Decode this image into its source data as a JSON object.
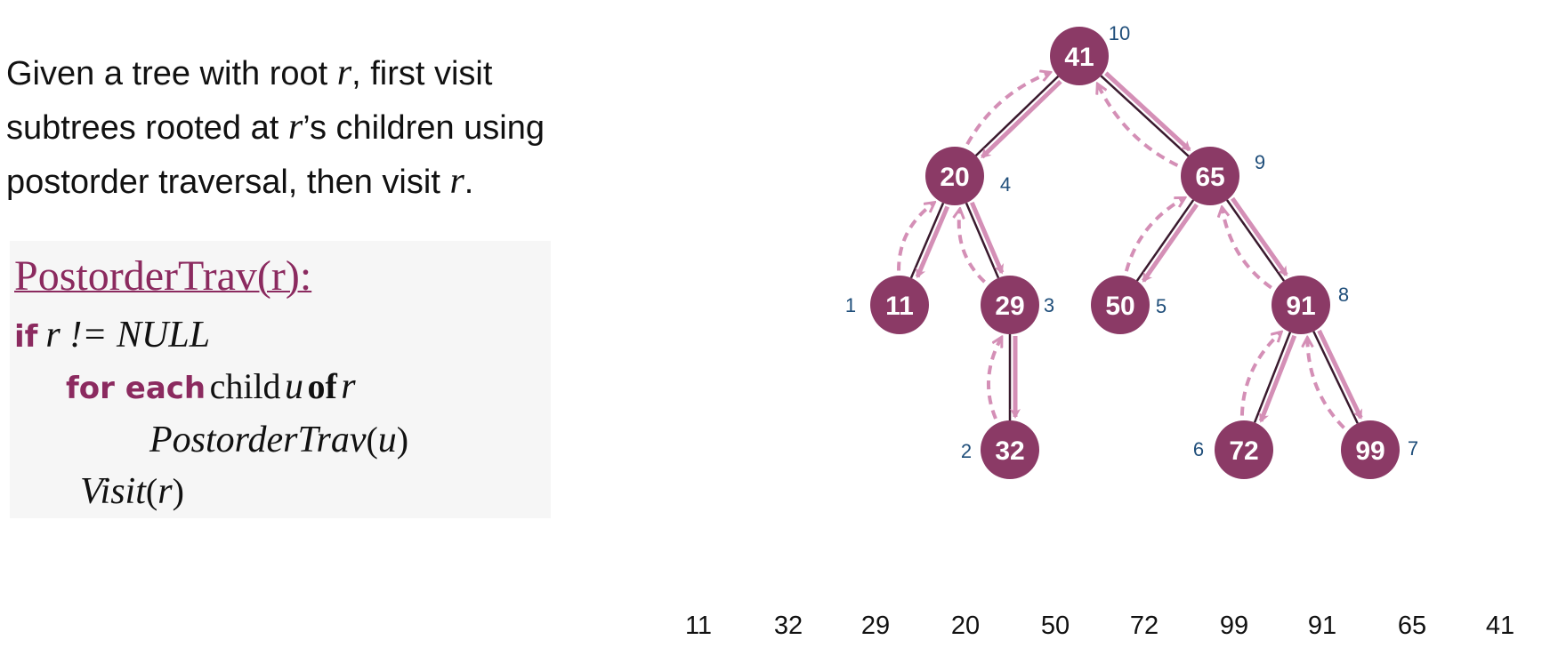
{
  "description": {
    "line1_pre": "Given a tree with root ",
    "line1_var": "r",
    "line1_post": ", first visit",
    "line2_pre": "subtrees rooted at ",
    "line2_var": "r",
    "line2_post": "’s children using",
    "line3_pre": "postorder traversal, then visit ",
    "line3_var": "r",
    "line3_post": "."
  },
  "code": {
    "title": "PostorderTrav(r):",
    "if_kw": "if",
    "if_cond": "r != NULL",
    "for_kw": "for each",
    "for_child": "child",
    "for_var_u": "u",
    "for_of": "of",
    "for_var_r": "r",
    "recursive_call_fn": "PostorderTrav",
    "recursive_call_arg": "u",
    "visit_fn": "Visit",
    "visit_arg": "r"
  },
  "tree": {
    "colors": {
      "node_fill": "#8b3a66",
      "node_text": "#ffffff",
      "edge": "#3a1a2e",
      "arrow": "#d48fb6",
      "order_label": "#1f4e7a"
    },
    "nodes": [
      {
        "id": "n41",
        "value": "41",
        "order": "10"
      },
      {
        "id": "n20",
        "value": "20",
        "order": "4"
      },
      {
        "id": "n65",
        "value": "65",
        "order": "9"
      },
      {
        "id": "n11",
        "value": "11",
        "order": "1"
      },
      {
        "id": "n29",
        "value": "29",
        "order": "3"
      },
      {
        "id": "n50",
        "value": "50",
        "order": "5"
      },
      {
        "id": "n91",
        "value": "91",
        "order": "8"
      },
      {
        "id": "n32",
        "value": "32",
        "order": "2"
      },
      {
        "id": "n72",
        "value": "72",
        "order": "6"
      },
      {
        "id": "n99",
        "value": "99",
        "order": "7"
      }
    ],
    "edges": [
      [
        "n41",
        "n20"
      ],
      [
        "n41",
        "n65"
      ],
      [
        "n20",
        "n11"
      ],
      [
        "n20",
        "n29"
      ],
      [
        "n29",
        "n32"
      ],
      [
        "n65",
        "n50"
      ],
      [
        "n65",
        "n91"
      ],
      [
        "n91",
        "n72"
      ],
      [
        "n91",
        "n99"
      ]
    ]
  },
  "output_sequence": [
    "11",
    "32",
    "29",
    "20",
    "50",
    "72",
    "99",
    "91",
    "65",
    "41"
  ]
}
